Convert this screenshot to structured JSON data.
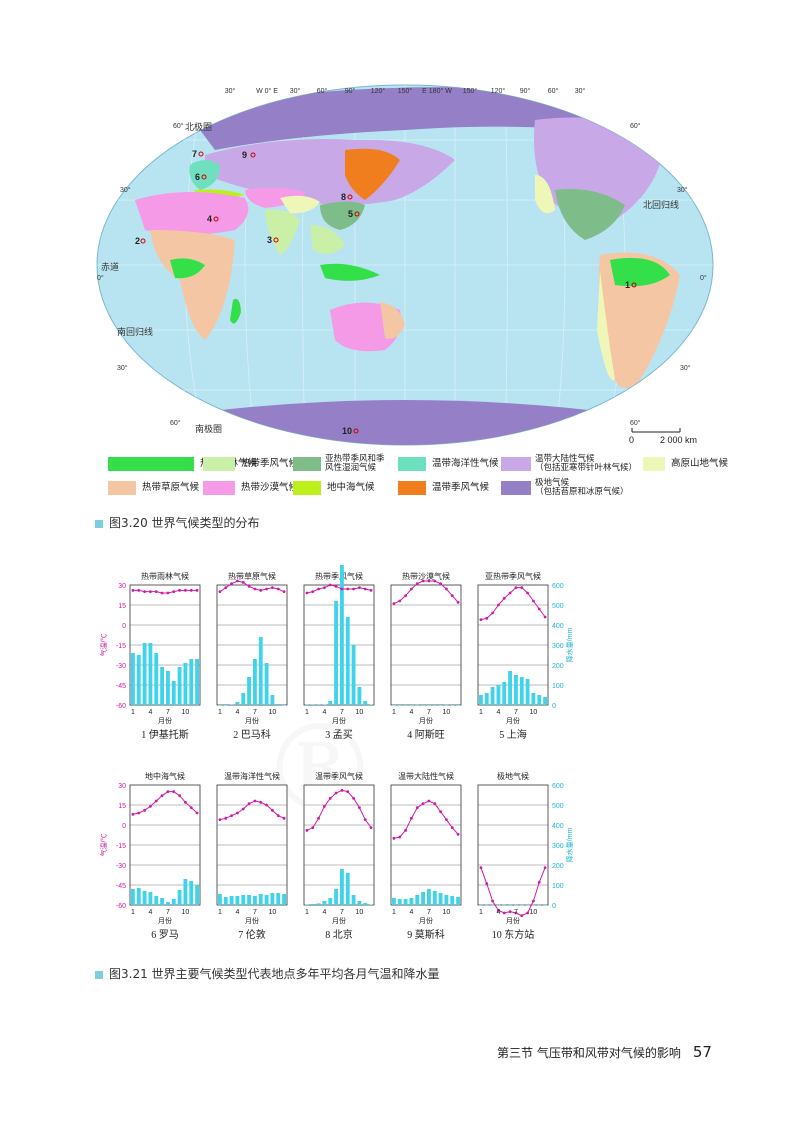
{
  "map": {
    "lon_labels": [
      "30°",
      "W 0° E",
      "30°",
      "60°",
      "90°",
      "120°",
      "150°",
      "E 180° W",
      "150°",
      "120°",
      "90°",
      "60°",
      "30°"
    ],
    "lat_labels_left": [
      "60°",
      "30°",
      "0°",
      "30°",
      "60°"
    ],
    "lat_labels_right": [
      "60°",
      "30°",
      "0°",
      "30°",
      "60°"
    ],
    "line_labels": [
      "北极圈",
      "北回归线",
      "赤道",
      "南回归线",
      "南极圈"
    ],
    "point_labels": [
      "1",
      "2",
      "3",
      "4",
      "5",
      "6",
      "7",
      "8",
      "9",
      "10"
    ],
    "scale": {
      "zero": "0",
      "value": "2 000 km"
    },
    "colors": {
      "ocean": "#b8e4f2",
      "rainforest": "#33e04a",
      "monsoon_trop": "#c9f0a6",
      "subtrop_monsoon": "#7ebd8a",
      "marine": "#6ee0c0",
      "continental": "#c9a8e8",
      "highland": "#eef7b8",
      "savanna": "#f5c6a4",
      "desert": "#f59ae6",
      "mediterranean": "#bdf01a",
      "temperate_monsoon": "#f07e1e",
      "polar": "#9580c8"
    }
  },
  "legend": [
    {
      "label": "热带雨林气候",
      "color": "#33e04a"
    },
    {
      "label": "热带季风气候",
      "color": "#c9f0a6"
    },
    {
      "label": "亚热带季风和季风性湿润气候",
      "line1": "亚热带季风和季",
      "line2": "风性湿润气候",
      "color": "#7ebd8a"
    },
    {
      "label": "温带海洋性气候",
      "color": "#6ee0c0"
    },
    {
      "label": "温带大陆性气候（包括亚寒带针叶林气候）",
      "line1": "温带大陆性气候",
      "line2": "（包括亚寒带针叶林气候）",
      "color": "#c9a8e8"
    },
    {
      "label": "高原山地气候",
      "color": "#eef7b8"
    },
    {
      "label": "热带草原气候",
      "color": "#f5c6a4"
    },
    {
      "label": "热带沙漠气候",
      "color": "#f59ae6"
    },
    {
      "label": "地中海气候",
      "color": "#bdf01a"
    },
    {
      "label": "温带季风气候",
      "color": "#f07e1e"
    },
    {
      "label": "极地气候（包括苔原和冰原气候）",
      "line1": "极地气候",
      "line2": "（包括苔原和冰原气候）",
      "color": "#9580c8"
    }
  ],
  "fig320_caption": "图3.20  世界气候类型的分布",
  "fig321_caption": "图3.21  世界主要气候类型代表地点多年平均各月气温和降水量",
  "axes": {
    "temp_label": "气温/℃",
    "precip_label": "降水量/mm",
    "month_label": "月份",
    "temp_ticks": [
      "30",
      "15",
      "0",
      "-15",
      "-30",
      "-45",
      "-60"
    ],
    "precip_ticks": [
      "600",
      "500",
      "400",
      "300",
      "200",
      "100",
      "0"
    ],
    "month_ticks": [
      "1",
      "4",
      "7",
      "10"
    ]
  },
  "chart_data": {
    "type": "bar",
    "x": [
      1,
      2,
      3,
      4,
      5,
      6,
      7,
      8,
      9,
      10,
      11,
      12
    ],
    "temp_range": [
      -60,
      30
    ],
    "precip_range": [
      0,
      600
    ],
    "charts": [
      {
        "title": "热带雨林气候",
        "number": "1",
        "place": "伊基托斯",
        "temp": [
          26,
          26,
          25,
          25,
          25,
          24,
          24,
          25,
          26,
          26,
          26,
          26
        ],
        "precip": [
          260,
          250,
          310,
          310,
          260,
          190,
          170,
          120,
          190,
          210,
          230,
          230
        ]
      },
      {
        "title": "热带草原气候",
        "number": "2",
        "place": "巴马科",
        "temp": [
          25,
          28,
          31,
          33,
          32,
          29,
          27,
          26,
          27,
          28,
          27,
          25
        ],
        "precip": [
          0,
          0,
          3,
          15,
          60,
          140,
          230,
          340,
          210,
          50,
          5,
          0
        ]
      },
      {
        "title": "热带季风气候",
        "number": "3",
        "place": "孟买",
        "temp": [
          24,
          25,
          27,
          28,
          30,
          29,
          27,
          27,
          27,
          28,
          27,
          26
        ],
        "precip": [
          3,
          3,
          3,
          3,
          20,
          520,
          710,
          440,
          300,
          90,
          20,
          3
        ]
      },
      {
        "title": "热带沙漠气候",
        "number": "4",
        "place": "阿斯旺",
        "temp": [
          16,
          18,
          22,
          27,
          31,
          33,
          33,
          33,
          31,
          27,
          22,
          17
        ],
        "precip": [
          0,
          0,
          0,
          0,
          1,
          0,
          0,
          0,
          0,
          1,
          0,
          0
        ]
      },
      {
        "title": "亚热带季风气候",
        "number": "5",
        "place": "上海",
        "temp": [
          4,
          5,
          9,
          15,
          20,
          24,
          28,
          28,
          24,
          18,
          12,
          6
        ],
        "precip": [
          50,
          60,
          90,
          100,
          115,
          170,
          150,
          140,
          130,
          60,
          50,
          40
        ]
      },
      {
        "title": "地中海气候",
        "number": "6",
        "place": "罗马",
        "temp": [
          8,
          9,
          11,
          14,
          18,
          22,
          25,
          25,
          22,
          17,
          13,
          9
        ],
        "precip": [
          80,
          85,
          70,
          65,
          45,
          35,
          15,
          30,
          75,
          130,
          120,
          100
        ]
      },
      {
        "title": "温带海洋性气候",
        "number": "7",
        "place": "伦敦",
        "temp": [
          4,
          5,
          7,
          9,
          12,
          16,
          18,
          17,
          15,
          11,
          7,
          5
        ],
        "precip": [
          55,
          40,
          45,
          45,
          50,
          50,
          45,
          55,
          50,
          60,
          60,
          55
        ]
      },
      {
        "title": "温带季风气候",
        "number": "8",
        "place": "北京",
        "temp": [
          -4,
          -2,
          5,
          14,
          20,
          24,
          26,
          25,
          20,
          13,
          4,
          -2
        ],
        "precip": [
          3,
          5,
          8,
          20,
          35,
          80,
          180,
          160,
          50,
          20,
          10,
          3
        ]
      },
      {
        "title": "温带大陆性气候",
        "number": "9",
        "place": "莫斯科",
        "temp": [
          -10,
          -9,
          -4,
          5,
          13,
          16,
          18,
          16,
          10,
          4,
          -2,
          -7
        ],
        "precip": [
          35,
          30,
          30,
          35,
          50,
          65,
          80,
          70,
          60,
          50,
          45,
          40
        ]
      },
      {
        "title": "极地气候",
        "number": "10",
        "place": "东方站",
        "temp": [
          -32,
          -44,
          -57,
          -64,
          -66,
          -65,
          -66,
          -68,
          -66,
          -57,
          -43,
          -32
        ],
        "precip": [
          1,
          1,
          1,
          1,
          1,
          1,
          1,
          1,
          1,
          1,
          1,
          1
        ]
      }
    ]
  },
  "footer": {
    "section": "第三节   气压带和风带对气候的影响",
    "page": "57"
  }
}
